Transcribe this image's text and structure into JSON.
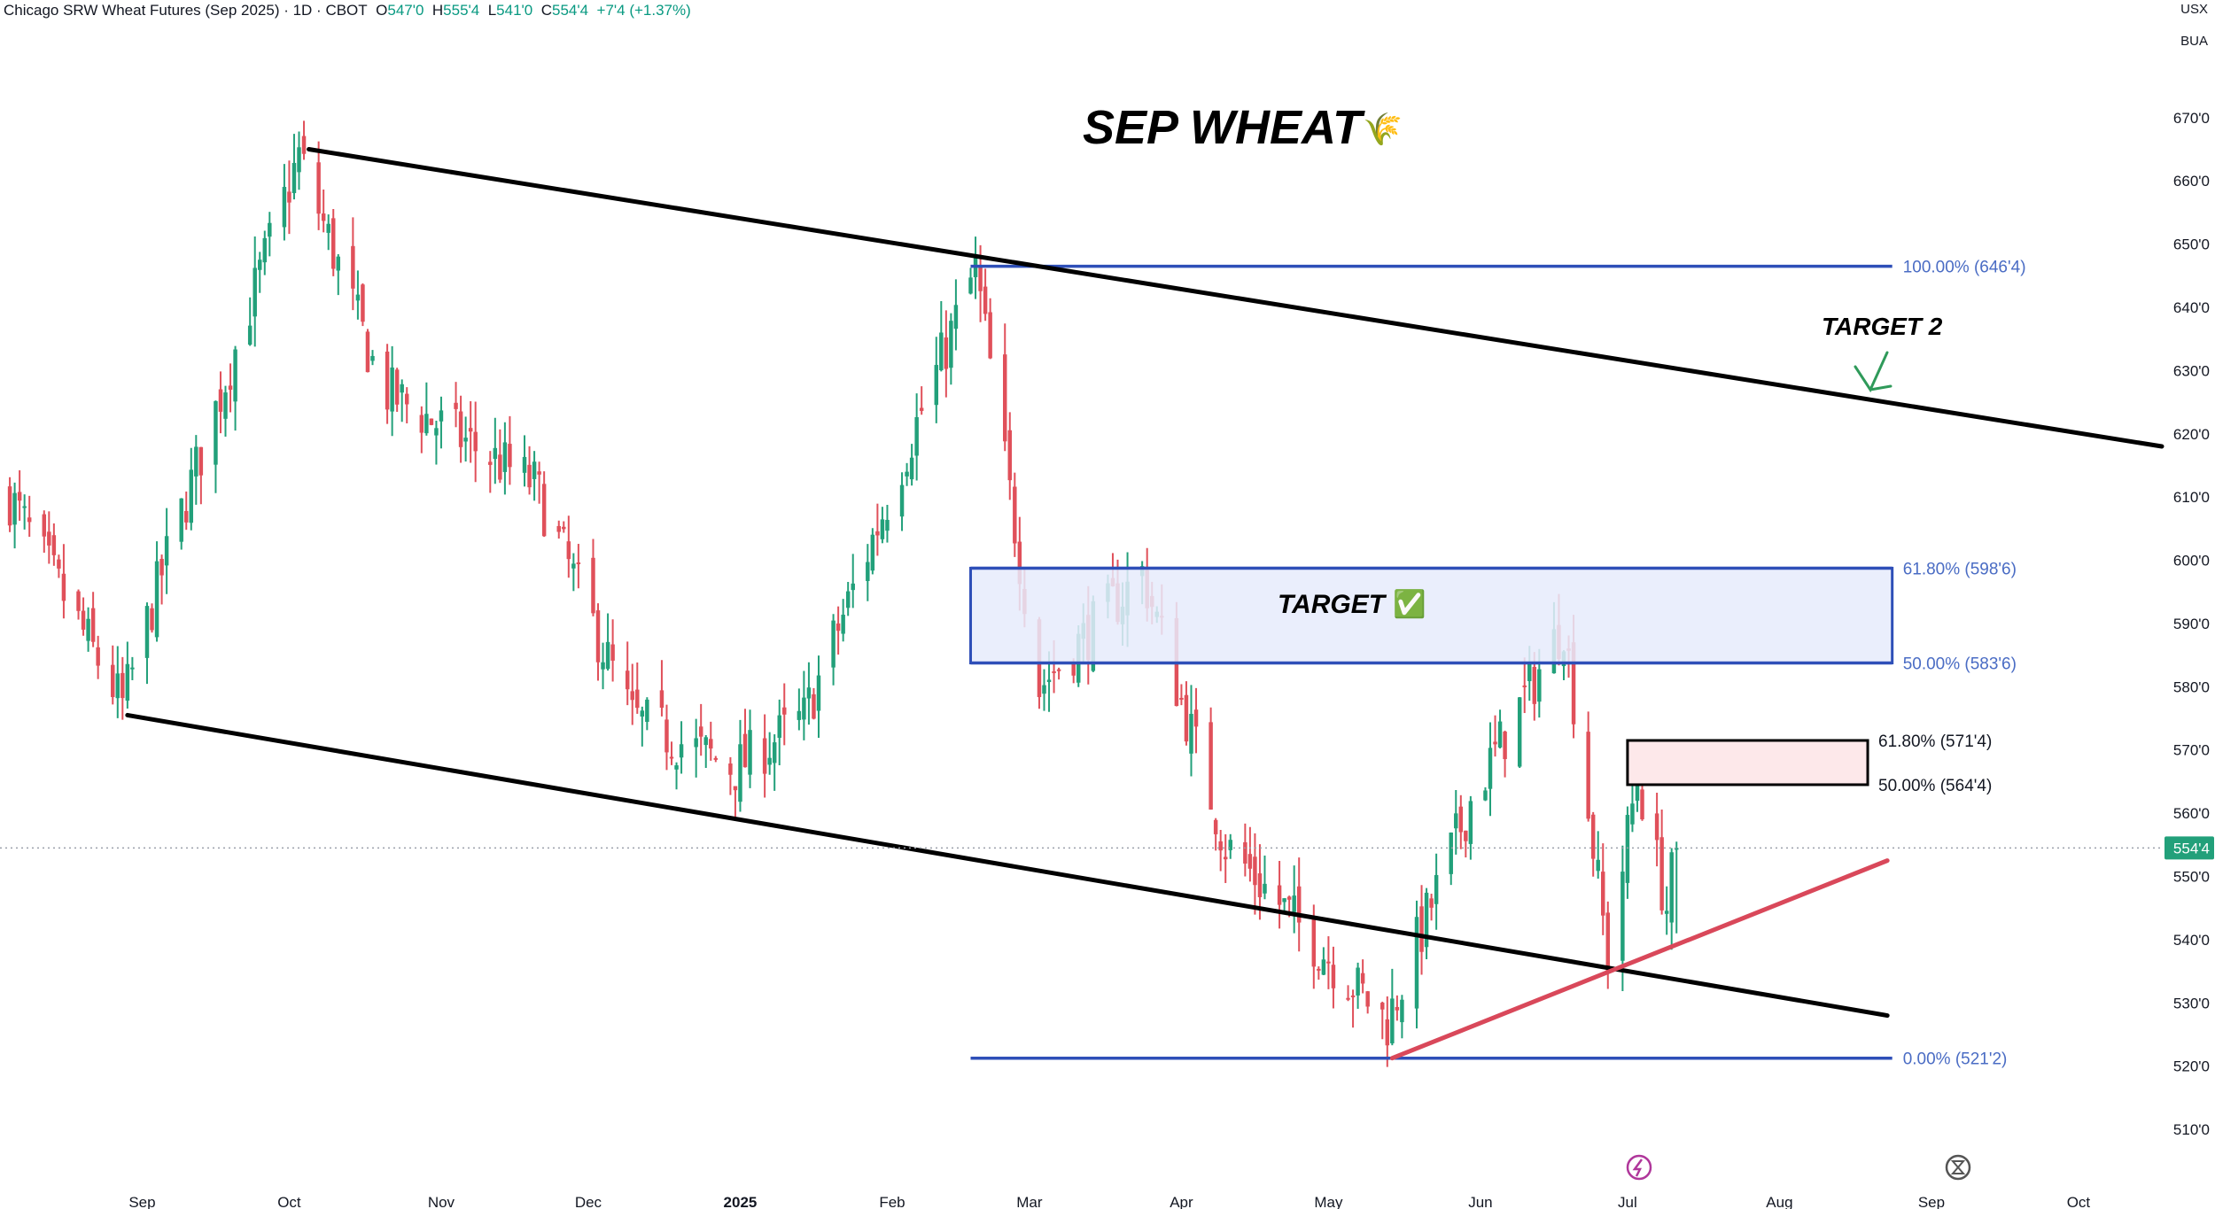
{
  "header": {
    "symbol": "Chicago SRW Wheat Futures (Sep 2025) · 1D · CBOT",
    "open_label": "O",
    "open": "547'0",
    "high_label": "H",
    "high": "555'4",
    "low_label": "L",
    "low": "541'0",
    "close_label": "C",
    "close": "554'4",
    "change": "+7'4 (+1.37%)"
  },
  "corner": {
    "currency": "USX",
    "unit": "BUA"
  },
  "annotations": {
    "title": "SEP WHEAT",
    "title_emoji": "🌾",
    "target": "TARGET",
    "target_check": "✅",
    "target2": "TARGET 2"
  },
  "colors": {
    "up": "#22a07a",
    "down": "#e0505a",
    "fib": "#2e4fb8",
    "fib_text": "#4a6cc4",
    "channel": "#000000",
    "trend": "#d9485a",
    "price_tag": "#22a07a",
    "zone_fill": "#e6ebfb",
    "zone2_fill": "#fde8ea"
  },
  "chart_data": {
    "type": "candlestick",
    "title": "SEP WHEAT",
    "y_range": [
      503,
      683
    ],
    "y_ticks": [
      "670'0",
      "660'0",
      "650'0",
      "640'0",
      "630'0",
      "620'0",
      "610'0",
      "600'0",
      "590'0",
      "580'0",
      "570'0",
      "560'0",
      "550'0",
      "540'0",
      "530'0",
      "520'0",
      "510'0"
    ],
    "y_tick_values": [
      670,
      660,
      650,
      640,
      630,
      620,
      610,
      600,
      590,
      580,
      570,
      560,
      550,
      540,
      530,
      520,
      510
    ],
    "x_ticks": [
      "Sep",
      "Oct",
      "Nov",
      "Dec",
      "2025",
      "Feb",
      "Mar",
      "Apr",
      "May",
      "Jun",
      "Jul",
      "Aug",
      "Sep",
      "Oct"
    ],
    "x_tick_dates": [
      "2024-09-01",
      "2024-10-01",
      "2024-11-01",
      "2024-12-01",
      "2025-01-01",
      "2025-02-01",
      "2025-03-01",
      "2025-04-01",
      "2025-05-01",
      "2025-06-01",
      "2025-07-01",
      "2025-08-01",
      "2025-09-01",
      "2025-10-01"
    ],
    "x_range": [
      "2024-08-03",
      "2025-10-18"
    ],
    "last_price": 554.5,
    "last_price_label": "554'4",
    "key_closes": [
      {
        "date": "2024-08-05",
        "close": 610
      },
      {
        "date": "2024-08-28",
        "close": 577
      },
      {
        "date": "2024-09-05",
        "close": 598
      },
      {
        "date": "2024-10-03",
        "close": 664
      },
      {
        "date": "2024-10-20",
        "close": 627
      },
      {
        "date": "2024-11-20",
        "close": 612
      },
      {
        "date": "2024-12-10",
        "close": 575
      },
      {
        "date": "2024-12-31",
        "close": 567
      },
      {
        "date": "2025-01-14",
        "close": 575
      },
      {
        "date": "2025-02-18",
        "close": 646
      },
      {
        "date": "2025-03-03",
        "close": 580
      },
      {
        "date": "2025-03-24",
        "close": 598
      },
      {
        "date": "2025-04-10",
        "close": 555
      },
      {
        "date": "2025-05-13",
        "close": 527
      },
      {
        "date": "2025-05-30",
        "close": 562
      },
      {
        "date": "2025-06-18",
        "close": 590
      },
      {
        "date": "2025-06-27",
        "close": 537
      },
      {
        "date": "2025-07-03",
        "close": 566
      },
      {
        "date": "2025-07-09",
        "close": 545
      },
      {
        "date": "2025-07-11",
        "close": 554.5
      }
    ],
    "fib_levels": [
      {
        "label": "100.00% (646'4)",
        "value": 646.5
      },
      {
        "label": "61.80% (598'6)",
        "value": 598.75
      },
      {
        "label": "50.00% (583'6)",
        "value": 583.75
      },
      {
        "label": "0.00% (521'2)",
        "value": 521.25
      }
    ],
    "fib_levels_small": [
      {
        "label": "61.80% (571'4)",
        "value": 571.5
      },
      {
        "label": "50.00% (564'4)",
        "value": 564.5
      }
    ],
    "target_zone": {
      "from": "2025-02-17",
      "to": "2025-08-24",
      "low": 583.75,
      "high": 598.75
    },
    "small_zone": {
      "from": "2025-07-01",
      "to": "2025-08-19",
      "low": 564.5,
      "high": 571.5
    },
    "fib_line_range": {
      "from": "2025-02-17",
      "to": "2025-08-24"
    },
    "channel_upper": [
      {
        "date": "2024-10-05",
        "value": 665
      },
      {
        "date": "2025-10-18",
        "value": 618
      }
    ],
    "channel_lower": [
      {
        "date": "2024-08-29",
        "value": 575.5
      },
      {
        "date": "2025-08-23",
        "value": 528
      }
    ],
    "trendline": [
      {
        "date": "2025-05-14",
        "value": 521.25
      },
      {
        "date": "2025-08-23",
        "value": 552.5
      }
    ],
    "grid": false
  }
}
